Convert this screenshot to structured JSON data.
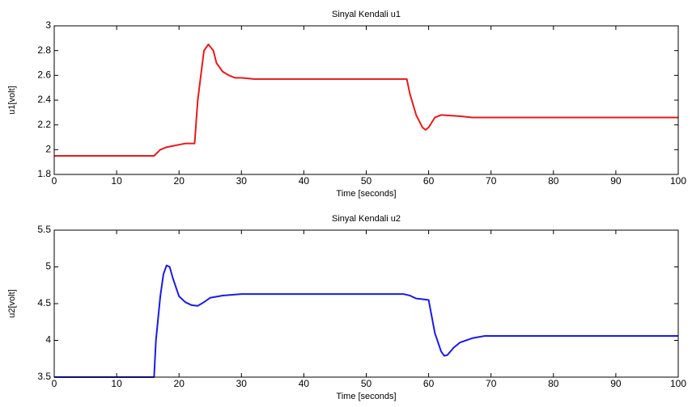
{
  "chart_data": [
    {
      "type": "line",
      "title": "Sinyal Kendali u1",
      "xlabel": "Time [seconds]",
      "ylabel": "u1[volt]",
      "color": "#e8191c",
      "x": [
        0,
        16,
        17,
        18,
        19,
        20,
        21,
        22.5,
        23,
        24,
        24.7,
        25.5,
        26,
        27,
        28,
        29,
        30,
        32,
        56.5,
        57,
        58,
        59,
        59.5,
        60,
        61,
        62,
        65,
        67,
        100
      ],
      "values": [
        1.95,
        1.95,
        2.0,
        2.02,
        2.03,
        2.04,
        2.05,
        2.05,
        2.4,
        2.8,
        2.85,
        2.8,
        2.7,
        2.63,
        2.6,
        2.58,
        2.58,
        2.57,
        2.57,
        2.45,
        2.28,
        2.18,
        2.16,
        2.18,
        2.26,
        2.28,
        2.27,
        2.26,
        2.26
      ],
      "xlim": [
        0,
        100
      ],
      "xticks": [
        0,
        10,
        20,
        30,
        40,
        50,
        60,
        70,
        80,
        90,
        100
      ],
      "ylim": [
        1.8,
        3
      ],
      "yticks": [
        1.8,
        2,
        2.2,
        2.4,
        2.6,
        2.8,
        3
      ]
    },
    {
      "type": "line",
      "title": "Sinyal Kendali u2",
      "xlabel": "Time [seconds]",
      "ylabel": "u2[volt]",
      "color": "#1a1ae6",
      "x": [
        0,
        16,
        16.3,
        17,
        17.5,
        18,
        18.5,
        19,
        20,
        21,
        22,
        23,
        24,
        25,
        27,
        30,
        56,
        57,
        58,
        59,
        60,
        61,
        62,
        62.5,
        63,
        64,
        65,
        67,
        69,
        100
      ],
      "values": [
        3.5,
        3.5,
        4.0,
        4.6,
        4.9,
        5.02,
        5.0,
        4.85,
        4.6,
        4.52,
        4.48,
        4.47,
        4.52,
        4.58,
        4.61,
        4.63,
        4.63,
        4.61,
        4.57,
        4.56,
        4.55,
        4.1,
        3.85,
        3.79,
        3.8,
        3.9,
        3.97,
        4.03,
        4.06,
        4.06
      ],
      "xlim": [
        0,
        100
      ],
      "xticks": [
        0,
        10,
        20,
        30,
        40,
        50,
        60,
        70,
        80,
        90,
        100
      ],
      "ylim": [
        3.5,
        5.5
      ],
      "yticks": [
        3.5,
        4,
        4.5,
        5,
        5.5
      ]
    }
  ]
}
